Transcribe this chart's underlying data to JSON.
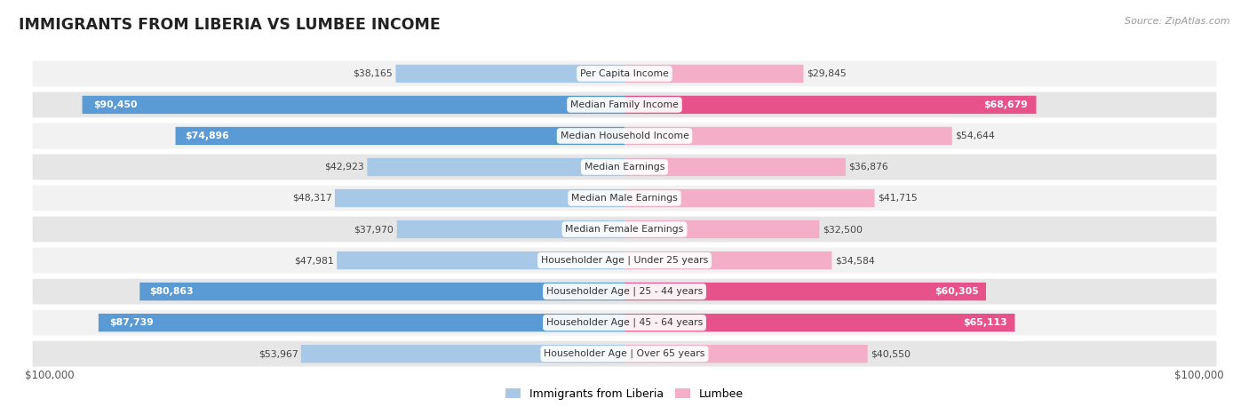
{
  "title": "IMMIGRANTS FROM LIBERIA VS LUMBEE INCOME",
  "source": "Source: ZipAtlas.com",
  "categories": [
    "Per Capita Income",
    "Median Family Income",
    "Median Household Income",
    "Median Earnings",
    "Median Male Earnings",
    "Median Female Earnings",
    "Householder Age | Under 25 years",
    "Householder Age | 25 - 44 years",
    "Householder Age | 45 - 64 years",
    "Householder Age | Over 65 years"
  ],
  "liberia_values": [
    38165,
    90450,
    74896,
    42923,
    48317,
    37970,
    47981,
    80863,
    87739,
    53967
  ],
  "lumbee_values": [
    29845,
    68679,
    54644,
    36876,
    41715,
    32500,
    34584,
    60305,
    65113,
    40550
  ],
  "liberia_labels": [
    "$38,165",
    "$90,450",
    "$74,896",
    "$42,923",
    "$48,317",
    "$37,970",
    "$47,981",
    "$80,863",
    "$87,739",
    "$53,967"
  ],
  "lumbee_labels": [
    "$29,845",
    "$68,679",
    "$54,644",
    "$36,876",
    "$41,715",
    "$32,500",
    "$34,584",
    "$60,305",
    "$65,113",
    "$40,550"
  ],
  "max_value": 100000,
  "liberia_color_light": "#a8c8e8",
  "liberia_color_dark": "#5b9bd5",
  "lumbee_color_light": "#f4aec8",
  "lumbee_color_dark": "#e8528a",
  "bg_color": "#ffffff",
  "row_bg_even": "#f2f2f2",
  "row_bg_odd": "#e6e6e6",
  "label_inside_threshold": 55000,
  "legend_liberia": "Immigrants from Liberia",
  "legend_lumbee": "Lumbee",
  "xaxis_label_left": "$100,000",
  "xaxis_label_right": "$100,000"
}
